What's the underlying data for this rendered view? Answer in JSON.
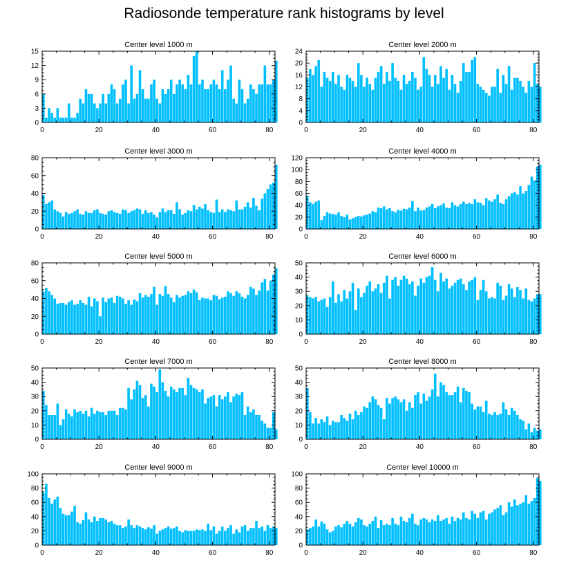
{
  "title": "Radiosonde temperature rank histograms by level",
  "bar_color": "#00BFFF",
  "chart_data": [
    {
      "type": "bar",
      "title": "Center level 1000 m",
      "xlim": [
        0,
        82
      ],
      "ylim": [
        0,
        15
      ],
      "xticks": [
        0,
        20,
        40,
        60,
        80
      ],
      "yticks": [
        0,
        3,
        6,
        9,
        12,
        15
      ],
      "values": [
        6,
        1,
        3,
        2,
        1,
        3,
        1,
        1,
        1,
        4,
        1,
        1,
        2,
        5,
        4,
        7,
        6,
        6,
        4,
        3,
        4,
        6,
        4,
        6,
        8,
        7,
        4,
        5,
        8,
        9,
        4,
        12,
        5,
        6,
        11,
        7,
        5,
        5,
        8,
        9,
        5,
        4,
        7,
        6,
        7,
        9,
        6,
        8,
        9,
        8,
        7,
        10,
        8,
        14,
        15,
        8,
        9,
        7,
        7,
        8,
        9,
        8,
        7,
        11,
        7,
        9,
        12,
        5,
        4,
        9,
        7,
        4,
        5,
        8,
        7,
        6,
        8,
        8,
        12,
        8,
        8,
        9,
        13
      ]
    },
    {
      "type": "bar",
      "title": "Center level 2000 m",
      "xlim": [
        0,
        82
      ],
      "ylim": [
        0,
        24
      ],
      "xticks": [
        0,
        20,
        40,
        60,
        80
      ],
      "yticks": [
        0,
        4,
        8,
        12,
        16,
        20,
        24
      ],
      "values": [
        15,
        18,
        16,
        19,
        21,
        12,
        17,
        15,
        14,
        17,
        13,
        16,
        12,
        11,
        16,
        15,
        14,
        12,
        20,
        16,
        12,
        15,
        13,
        11,
        15,
        17,
        19,
        13,
        17,
        14,
        20,
        15,
        14,
        11,
        16,
        13,
        14,
        17,
        15,
        11,
        12,
        22,
        18,
        16,
        12,
        16,
        13,
        19,
        15,
        18,
        11,
        16,
        13,
        10,
        14,
        20,
        17,
        17,
        21,
        22,
        13,
        12,
        11,
        10,
        9,
        12,
        12,
        18,
        10,
        16,
        13,
        19,
        11,
        15,
        15,
        14,
        12,
        10,
        14,
        12,
        20,
        13,
        12
      ]
    },
    {
      "type": "bar",
      "title": "Center level 3000 m",
      "xlim": [
        0,
        82
      ],
      "ylim": [
        0,
        80
      ],
      "xticks": [
        0,
        20,
        40,
        60,
        80
      ],
      "yticks": [
        0,
        20,
        40,
        60,
        80
      ],
      "values": [
        38,
        28,
        30,
        32,
        22,
        20,
        18,
        14,
        19,
        17,
        18,
        20,
        22,
        17,
        16,
        20,
        18,
        18,
        21,
        22,
        18,
        17,
        16,
        20,
        21,
        19,
        18,
        17,
        22,
        21,
        18,
        20,
        21,
        23,
        22,
        17,
        21,
        18,
        19,
        16,
        13,
        19,
        23,
        19,
        21,
        21,
        17,
        30,
        22,
        16,
        18,
        21,
        20,
        27,
        22,
        25,
        23,
        28,
        21,
        19,
        18,
        33,
        19,
        22,
        19,
        22,
        21,
        20,
        32,
        22,
        22,
        25,
        30,
        24,
        35,
        26,
        21,
        34,
        40,
        45,
        50,
        52,
        72
      ]
    },
    {
      "type": "bar",
      "title": "Center level 4000 m",
      "xlim": [
        0,
        82
      ],
      "ylim": [
        0,
        120
      ],
      "xticks": [
        0,
        20,
        40,
        60,
        80
      ],
      "yticks": [
        0,
        20,
        40,
        60,
        80,
        100,
        120
      ],
      "values": [
        56,
        45,
        42,
        46,
        48,
        15,
        22,
        28,
        26,
        25,
        24,
        28,
        22,
        20,
        24,
        16,
        18,
        20,
        22,
        21,
        23,
        24,
        26,
        30,
        28,
        36,
        35,
        38,
        33,
        35,
        30,
        28,
        32,
        31,
        34,
        33,
        36,
        47,
        30,
        36,
        31,
        32,
        36,
        38,
        42,
        35,
        38,
        40,
        43,
        36,
        35,
        45,
        40,
        38,
        42,
        46,
        42,
        44,
        42,
        50,
        45,
        44,
        40,
        52,
        48,
        46,
        50,
        58,
        44,
        42,
        50,
        55,
        60,
        62,
        58,
        72,
        60,
        64,
        74,
        88,
        82,
        105,
        108
      ]
    },
    {
      "type": "bar",
      "title": "Center level 5000 m",
      "xlim": [
        0,
        82
      ],
      "ylim": [
        0,
        80
      ],
      "xticks": [
        0,
        20,
        40,
        60,
        80
      ],
      "yticks": [
        0,
        20,
        40,
        60,
        80
      ],
      "values": [
        48,
        52,
        48,
        44,
        40,
        34,
        35,
        35,
        33,
        36,
        38,
        33,
        34,
        38,
        35,
        33,
        42,
        31,
        40,
        37,
        20,
        41,
        36,
        40,
        41,
        35,
        43,
        42,
        40,
        34,
        38,
        33,
        39,
        37,
        46,
        41,
        44,
        42,
        45,
        53,
        33,
        45,
        43,
        54,
        45,
        41,
        36,
        44,
        41,
        43,
        44,
        48,
        46,
        50,
        47,
        38,
        41,
        40,
        40,
        38,
        44,
        43,
        39,
        41,
        42,
        48,
        46,
        43,
        48,
        46,
        42,
        40,
        44,
        53,
        51,
        44,
        49,
        58,
        62,
        49,
        60,
        67,
        74
      ]
    },
    {
      "type": "bar",
      "title": "Center level 6000 m",
      "xlim": [
        0,
        82
      ],
      "ylim": [
        0,
        50
      ],
      "xticks": [
        0,
        20,
        40,
        60,
        80
      ],
      "yticks": [
        0,
        10,
        20,
        30,
        40,
        50
      ],
      "values": [
        27,
        26,
        25,
        26,
        23,
        24,
        25,
        19,
        26,
        37,
        22,
        28,
        23,
        31,
        25,
        30,
        36,
        17,
        32,
        26,
        29,
        34,
        37,
        30,
        32,
        35,
        29,
        36,
        41,
        25,
        38,
        40,
        34,
        38,
        41,
        39,
        35,
        37,
        27,
        34,
        39,
        36,
        40,
        41,
        47,
        38,
        30,
        43,
        37,
        39,
        32,
        34,
        36,
        38,
        39,
        35,
        31,
        37,
        38,
        40,
        24,
        31,
        38,
        30,
        25,
        26,
        25,
        36,
        34,
        24,
        27,
        35,
        32,
        26,
        33,
        31,
        25,
        32,
        24,
        23,
        25,
        28,
        28
      ]
    },
    {
      "type": "bar",
      "title": "Center level 7000 m",
      "xlim": [
        0,
        82
      ],
      "ylim": [
        0,
        50
      ],
      "xticks": [
        0,
        20,
        40,
        60,
        80
      ],
      "yticks": [
        0,
        10,
        20,
        30,
        40,
        50
      ],
      "values": [
        34,
        24,
        17,
        17,
        17,
        25,
        10,
        14,
        21,
        18,
        16,
        21,
        19,
        20,
        18,
        20,
        16,
        22,
        18,
        20,
        19,
        19,
        17,
        20,
        20,
        20,
        17,
        22,
        22,
        21,
        36,
        28,
        35,
        41,
        38,
        29,
        31,
        23,
        39,
        37,
        33,
        49,
        40,
        34,
        30,
        37,
        35,
        33,
        36,
        36,
        31,
        43,
        38,
        36,
        35,
        33,
        35,
        25,
        29,
        30,
        31,
        23,
        31,
        28,
        30,
        33,
        26,
        30,
        32,
        31,
        33,
        17,
        23,
        19,
        21,
        17,
        17,
        13,
        11,
        8,
        8,
        19,
        7
      ]
    },
    {
      "type": "bar",
      "title": "Center level 8000 m",
      "xlim": [
        0,
        82
      ],
      "ylim": [
        0,
        50
      ],
      "xticks": [
        0,
        20,
        40,
        60,
        80
      ],
      "yticks": [
        0,
        10,
        20,
        30,
        40,
        50
      ],
      "values": [
        36,
        19,
        11,
        15,
        11,
        14,
        12,
        16,
        10,
        13,
        12,
        12,
        17,
        15,
        13,
        18,
        14,
        20,
        17,
        19,
        23,
        22,
        26,
        30,
        28,
        24,
        22,
        14,
        29,
        25,
        29,
        30,
        28,
        26,
        28,
        20,
        26,
        22,
        31,
        33,
        25,
        32,
        27,
        30,
        35,
        46,
        30,
        40,
        38,
        33,
        31,
        31,
        33,
        37,
        26,
        36,
        34,
        33,
        25,
        21,
        23,
        23,
        19,
        27,
        18,
        17,
        19,
        17,
        18,
        26,
        21,
        17,
        22,
        20,
        17,
        14,
        13,
        7,
        11,
        5,
        8,
        6,
        7
      ]
    },
    {
      "type": "bar",
      "title": "Center level 9000 m",
      "xlim": [
        0,
        82
      ],
      "ylim": [
        0,
        100
      ],
      "xticks": [
        0,
        20,
        40,
        60,
        80
      ],
      "yticks": [
        0,
        20,
        40,
        60,
        80,
        100
      ],
      "values": [
        74,
        86,
        66,
        58,
        64,
        68,
        52,
        44,
        42,
        42,
        47,
        55,
        32,
        30,
        35,
        46,
        36,
        32,
        40,
        34,
        38,
        38,
        36,
        32,
        34,
        30,
        28,
        28,
        24,
        26,
        36,
        28,
        24,
        28,
        26,
        24,
        22,
        25,
        23,
        28,
        16,
        20,
        22,
        24,
        26,
        23,
        24,
        26,
        20,
        18,
        21,
        20,
        20,
        20,
        22,
        21,
        22,
        20,
        30,
        21,
        26,
        16,
        20,
        26,
        20,
        24,
        28,
        16,
        22,
        18,
        26,
        28,
        20,
        24,
        24,
        34,
        24,
        26,
        20,
        28,
        24,
        26,
        24
      ]
    },
    {
      "type": "bar",
      "title": "Center level 10000 m",
      "xlim": [
        0,
        82
      ],
      "ylim": [
        0,
        100
      ],
      "xticks": [
        0,
        20,
        40,
        60,
        80
      ],
      "yticks": [
        0,
        20,
        40,
        60,
        80,
        100
      ],
      "values": [
        22,
        24,
        26,
        36,
        26,
        33,
        30,
        22,
        18,
        20,
        26,
        28,
        25,
        30,
        34,
        30,
        26,
        32,
        38,
        36,
        28,
        26,
        30,
        34,
        40,
        24,
        35,
        28,
        30,
        28,
        38,
        30,
        28,
        40,
        34,
        32,
        38,
        44,
        30,
        28,
        36,
        38,
        36,
        32,
        36,
        34,
        42,
        34,
        36,
        38,
        30,
        40,
        34,
        38,
        36,
        46,
        38,
        36,
        48,
        44,
        38,
        46,
        48,
        36,
        44,
        46,
        50,
        52,
        56,
        42,
        46,
        60,
        54,
        64,
        56,
        58,
        60,
        70,
        58,
        62,
        66,
        94,
        90
      ]
    }
  ]
}
